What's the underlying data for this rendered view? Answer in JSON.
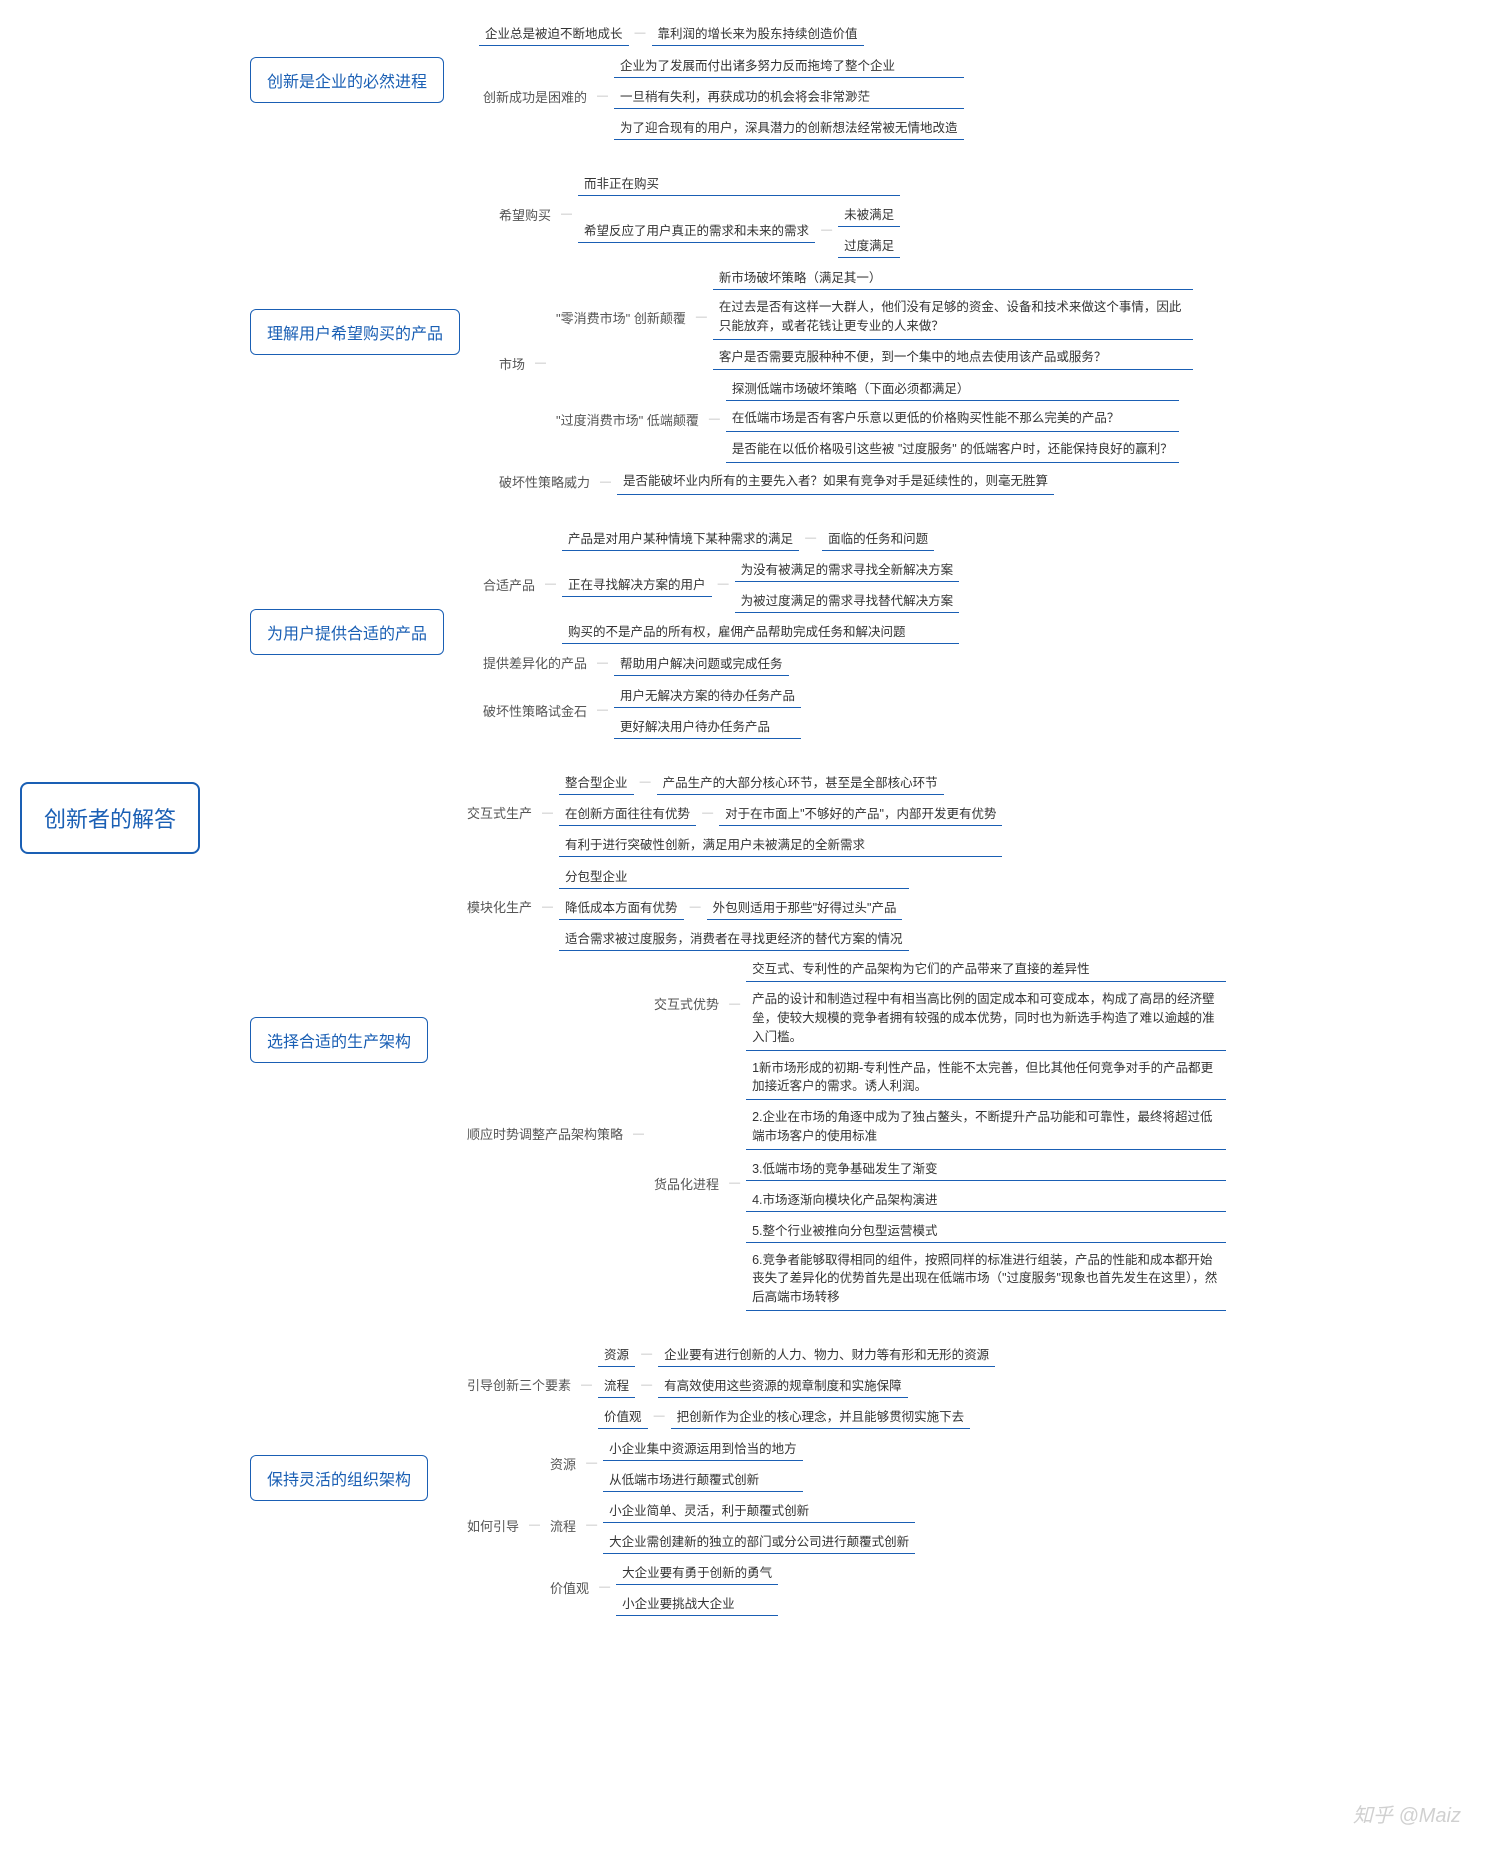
{
  "root": "创新者的解答",
  "watermark": "知乎 @Maiz",
  "b1": {
    "title": "创新是企业的必然进程",
    "l1a": "企业总是被迫不断地成长",
    "l1b": "靠利润的增长来为股东持续创造价值",
    "sub": "创新成功是困难的",
    "s1": "企业为了发展而付出诸多努力反而拖垮了整个企业",
    "s2": "一旦稍有失利，再获成功的机会将会非常渺茫",
    "s3": "为了迎合现有的用户，深具潜力的创新想法经常被无情地改造"
  },
  "b2": {
    "title": "理解用户希望购买的产品",
    "hopeBuy": "希望购买",
    "hb1": "而非正在购买",
    "hb2": "希望反应了用户真正的需求和未来的需求",
    "hb2a": "未被满足",
    "hb2b": "过度满足",
    "market": "市场",
    "m1": "\"零消费市场\" 创新颠覆",
    "m1a": "新市场破坏策略（满足其一）",
    "m1b": "在过去是否有这样一大群人，他们没有足够的资金、设备和技术来做这个事情，因此只能放弃，或者花钱让更专业的人来做？",
    "m1c": "客户是否需要克服种种不便，到一个集中的地点去使用该产品或服务？",
    "m2": "\"过度消费市场\" 低端颠覆",
    "m2a": "探测低端市场破坏策略（下面必须都满足）",
    "m2b": "在低端市场是否有客户乐意以更低的价格购买性能不那么完美的产品？",
    "m2c": "是否能在以低价格吸引这些被 \"过度服务\" 的低端客户时，还能保持良好的赢利？",
    "destroy": "破坏性策略威力",
    "d1": "是否能破坏业内所有的主要先入者？如果有竞争对手是延续性的，则毫无胜算"
  },
  "b3": {
    "title": "为用户提供合适的产品",
    "fit": "合适产品",
    "f1a": "产品是对用户某种情境下某种需求的满足",
    "f1b": "面临的任务和问题",
    "f2": "正在寻找解决方案的用户",
    "f2a": "为没有被满足的需求寻找全新解决方案",
    "f2b": "为被过度满足的需求寻找替代解决方案",
    "f3": "购买的不是产品的所有权，雇佣产品帮助完成任务和解决问题",
    "diff": "提供差异化的产品",
    "diffa": "帮助用户解决问题或完成任务",
    "stone": "破坏性策略试金石",
    "s1": "用户无解决方案的待办任务产品",
    "s2": "更好解决用户待办任务产品"
  },
  "b4": {
    "title": "选择合适的生产架构",
    "inter": "交互式生产",
    "i1a": "整合型企业",
    "i1b": "产品生产的大部分核心环节，甚至是全部核心环节",
    "i2a": "在创新方面往往有优势",
    "i2b": "对于在市面上\"不够好的产品\"，内部开发更有优势",
    "i3": "有利于进行突破性创新，满足用户未被满足的全新需求",
    "mod": "模块化生产",
    "mo1": "分包型企业",
    "mo2a": "降低成本方面有优势",
    "mo2b": "外包则适用于那些\"好得过头\"产品",
    "mo3": "适合需求被过度服务，消费者在寻找更经济的替代方案的情况",
    "adj": "顺应时势调整产品架构策略",
    "adv": "交互式优势",
    "a1": "交互式、专利性的产品架构为它们的产品带来了直接的差异性",
    "a2": "产品的设计和制造过程中有相当高比例的固定成本和可变成本，构成了高昂的经济壁垒，使较大规模的竞争者拥有较强的成本优势，同时也为新选手构造了难以逾越的准入门槛。",
    "com": "货品化进程",
    "c1": "1新市场形成的初期-专利性产品，性能不太完善，但比其他任何竞争对手的产品都更加接近客户的需求。诱人利润。",
    "c2": "2.企业在市场的角逐中成为了独占鳌头，不断提升产品功能和可靠性，最终将超过低端市场客户的使用标准",
    "c3": "3.低端市场的竞争基础发生了渐变",
    "c4": "4.市场逐渐向模块化产品架构演进",
    "c5": "5.整个行业被推向分包型运营模式",
    "c6": "6.竞争者能够取得相同的组件，按照同样的标准进行组装，产品的性能和成本都开始丧失了差异化的优势首先是出现在低端市场（\"过度服务\"现象也首先发生在这里），然后高端市场转移"
  },
  "b5": {
    "title": "保持灵活的组织架构",
    "three": "引导创新三个要素",
    "t1": "资源",
    "t1a": "企业要有进行创新的人力、物力、财力等有形和无形的资源",
    "t2": "流程",
    "t2a": "有高效使用这些资源的规章制度和实施保障",
    "t3": "价值观",
    "t3a": "把创新作为企业的核心理念，并且能够贯彻实施下去",
    "how": "如何引导",
    "h1": "资源",
    "h1a": "小企业集中资源运用到恰当的地方",
    "h1b": "从低端市场进行颠覆式创新",
    "h2": "流程",
    "h2a": "小企业简单、灵活，利于颠覆式创新",
    "h2b": "大企业需创建新的独立的部门或分公司进行颠覆式创新",
    "h3": "价值观",
    "h3a": "大企业要有勇于创新的勇气",
    "h3b": "小企业要挑战大企业"
  }
}
